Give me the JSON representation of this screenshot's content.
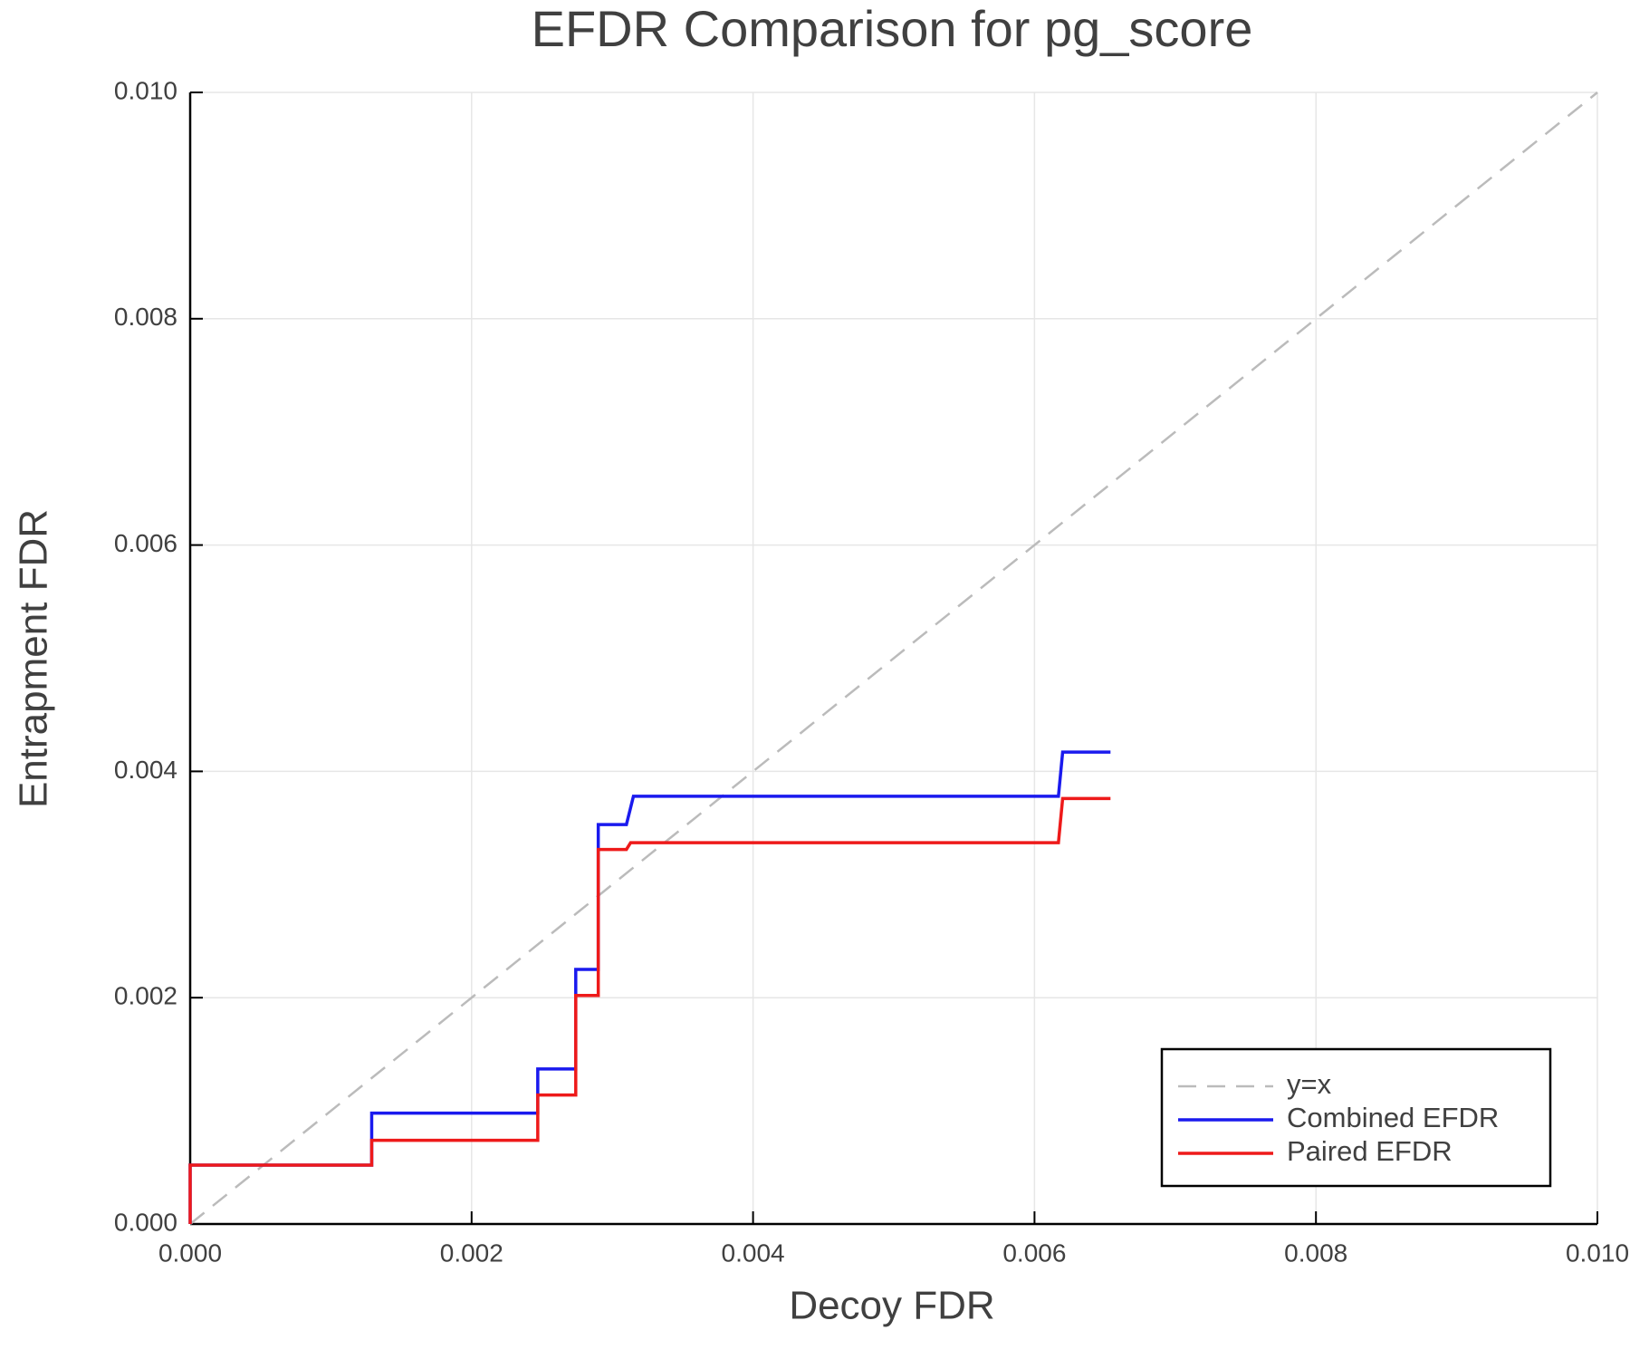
{
  "chart_data": {
    "type": "line",
    "title": "EFDR Comparison for pg_score",
    "x_label": "Decoy FDR",
    "y_label": "Entrapment FDR",
    "xlim": [
      0,
      0.01
    ],
    "ylim": [
      0,
      0.01
    ],
    "xticks": [
      {
        "value": 0,
        "label": "0.000"
      },
      {
        "value": 0.002,
        "label": "0.002"
      },
      {
        "value": 0.004,
        "label": "0.004"
      },
      {
        "value": 0.006,
        "label": "0.006"
      },
      {
        "value": 0.008,
        "label": "0.008"
      },
      {
        "value": 0.01,
        "label": "0.010"
      }
    ],
    "yticks": [
      {
        "value": 0,
        "label": "0.000"
      },
      {
        "value": 0.002,
        "label": "0.002"
      },
      {
        "value": 0.004,
        "label": "0.004"
      },
      {
        "value": 0.006,
        "label": "0.006"
      },
      {
        "value": 0.008,
        "label": "0.008"
      },
      {
        "value": 0.01,
        "label": "0.010"
      }
    ],
    "grid": true,
    "legend": "lower right",
    "series": [
      {
        "name": "y=x",
        "color": "#bbbbbb",
        "dashed": true,
        "x": [
          0,
          0.01
        ],
        "values": [
          0,
          0.01
        ]
      },
      {
        "name": "Combined EFDR",
        "color": "#1a1aee",
        "dashed": false,
        "x": [
          0,
          0,
          0.00129,
          0.00129,
          0.00247,
          0.00247,
          0.00274,
          0.00274,
          0.0029,
          0.0029,
          0.0031,
          0.00315,
          0.00617,
          0.0062,
          0.00654
        ],
        "values": [
          0,
          0.00052,
          0.00052,
          0.00098,
          0.00098,
          0.00137,
          0.00137,
          0.00225,
          0.00225,
          0.00353,
          0.00353,
          0.00378,
          0.00378,
          0.00417,
          0.00417
        ]
      },
      {
        "name": "Paired EFDR",
        "color": "#ee1a1a",
        "dashed": false,
        "x": [
          0,
          0,
          0.00129,
          0.00129,
          0.00247,
          0.00247,
          0.00274,
          0.00274,
          0.0029,
          0.0029,
          0.0031,
          0.00313,
          0.00617,
          0.0062,
          0.00654
        ],
        "values": [
          0,
          0.00052,
          0.00052,
          0.00074,
          0.00074,
          0.00114,
          0.00114,
          0.00202,
          0.00202,
          0.00331,
          0.00331,
          0.00337,
          0.00337,
          0.00376,
          0.00376
        ]
      }
    ]
  }
}
